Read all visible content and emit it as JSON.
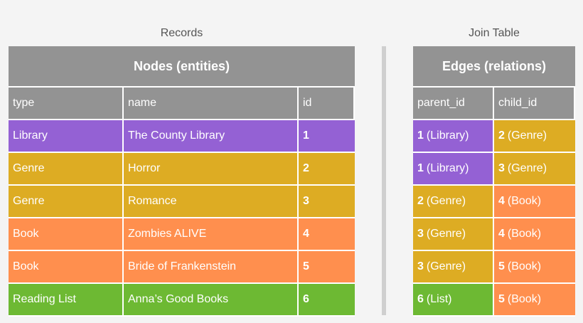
{
  "captions": {
    "left": "Records",
    "right": "Join Table"
  },
  "colors": {
    "header": "#939393",
    "Library": "#9461d4",
    "Genre": "#ddac23",
    "Book": "#ff8f4e",
    "Reading List": "#6db933"
  },
  "nodes": {
    "title": "Nodes (entities)",
    "columns": [
      "type",
      "name",
      "id"
    ],
    "rows": [
      {
        "type": "Library",
        "name": "The County Library",
        "id": "1"
      },
      {
        "type": "Genre",
        "name": "Horror",
        "id": "2"
      },
      {
        "type": "Genre",
        "name": "Romance",
        "id": "3"
      },
      {
        "type": "Book",
        "name": "Zombies ALIVE",
        "id": "4"
      },
      {
        "type": "Book",
        "name": "Bride of Frankenstein",
        "id": "5"
      },
      {
        "type": "Reading List",
        "name": "Anna’s Good Books",
        "id": "6"
      }
    ]
  },
  "edges": {
    "title": "Edges (relations)",
    "columns": [
      "parent_id",
      "child_id"
    ],
    "rows": [
      {
        "parent_id": "1",
        "parent_label": "(Library)",
        "parent_type": "Library",
        "child_id": "2",
        "child_label": "(Genre)",
        "child_type": "Genre"
      },
      {
        "parent_id": "1",
        "parent_label": "(Library)",
        "parent_type": "Library",
        "child_id": "3",
        "child_label": "(Genre)",
        "child_type": "Genre"
      },
      {
        "parent_id": "2",
        "parent_label": "(Genre)",
        "parent_type": "Genre",
        "child_id": "4",
        "child_label": "(Book)",
        "child_type": "Book"
      },
      {
        "parent_id": "3",
        "parent_label": "(Genre)",
        "parent_type": "Genre",
        "child_id": "4",
        "child_label": "(Book)",
        "child_type": "Book"
      },
      {
        "parent_id": "3",
        "parent_label": "(Genre)",
        "parent_type": "Genre",
        "child_id": "5",
        "child_label": "(Book)",
        "child_type": "Book"
      },
      {
        "parent_id": "6",
        "parent_label": "(List)",
        "parent_type": "Reading List",
        "child_id": "5",
        "child_label": "(Book)",
        "child_type": "Book"
      }
    ]
  }
}
